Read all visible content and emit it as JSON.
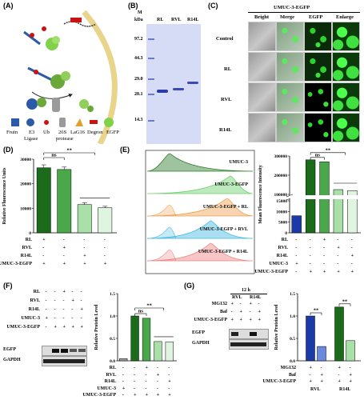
{
  "panels": {
    "A": {
      "label": "(A)",
      "legend": [
        "Fruin",
        "E3",
        "Ub",
        "26S",
        "LaG16",
        "Degron",
        "EGFP"
      ],
      "legend_line2": [
        "Ligase",
        "protease"
      ]
    },
    "B": {
      "label": "(B)",
      "marker_header": "M",
      "kda_label": "kDa",
      "lane_labels": [
        "RL",
        "RVL",
        "R14L"
      ],
      "kda_values": [
        "97.2",
        "44.3",
        "29.0",
        "20.1",
        "14.3"
      ]
    },
    "C": {
      "label": "(C)",
      "title": "UMUC-3-EGFP",
      "col_headers": [
        "Bright",
        "Merge",
        "EGFP",
        "Enlarge"
      ],
      "row_labels": [
        "Control",
        "RL",
        "RVL",
        "R14L"
      ]
    },
    "D": {
      "label": "(D)",
      "ylabel": "Relative Fluorescence Units",
      "sig_ns": "ns",
      "sig_star": "**",
      "row_labels": [
        "RL",
        "RVL",
        "R14L",
        "UMUC-3-EGFP"
      ],
      "row_signs": [
        [
          "+",
          "-",
          "-",
          "-"
        ],
        [
          "-",
          "+",
          "-",
          "-"
        ],
        [
          "-",
          "-",
          "+",
          "-"
        ],
        [
          "+",
          "+",
          "+",
          "+"
        ]
      ]
    },
    "E": {
      "label": "(E)",
      "flow_labels": [
        "UMUC-3",
        "UMUC-3-EGFP",
        "UMUC-3-EGFP + RL",
        "UMUC-3-EGFP + RVL",
        "UMUC-3-EGFP + R14L"
      ],
      "ylabel": "Mean Fluorescence Intensity",
      "sig_ns": "ns",
      "sig_star": "**",
      "row_labels": [
        "RL",
        "RVL",
        "R14L",
        "UMUC-3",
        "UMUC-3-EGFP"
      ],
      "row_signs": [
        [
          "-",
          "-",
          "+",
          "-",
          "-"
        ],
        [
          "-",
          "-",
          "-",
          "+",
          "-"
        ],
        [
          "-",
          "-",
          "-",
          "-",
          "+"
        ],
        [
          "+",
          "-",
          "-",
          "-",
          "-"
        ],
        [
          "-",
          "+",
          "+",
          "+",
          "+"
        ]
      ]
    },
    "F": {
      "label": "(F)",
      "blot_rows": [
        "RL",
        "RVL",
        "R14L",
        "UMUC-3",
        "UMUC-3-EGFP"
      ],
      "blot_signs": [
        [
          "-",
          "-",
          "+",
          "-",
          "-"
        ],
        [
          "-",
          "-",
          "-",
          "+",
          "-"
        ],
        [
          "-",
          "-",
          "-",
          "-",
          "+"
        ],
        [
          "+",
          "-",
          "-",
          "-",
          "-"
        ],
        [
          "-",
          "+",
          "+",
          "+",
          "+"
        ]
      ],
      "bands": [
        "EGFP",
        "GAPDH"
      ],
      "ylabel": "Relative Protein Level",
      "sig_ns": "ns",
      "sig_star": "**"
    },
    "G": {
      "label": "(G)",
      "time_label": "12 h",
      "groups": [
        "RVL",
        "R14L"
      ],
      "blot_rows": [
        "MG132",
        "Baf",
        "UMUC-3-EGFP"
      ],
      "blot_signs": [
        [
          "+",
          "-",
          "+",
          "-"
        ],
        [
          "-",
          "+",
          "-",
          "+"
        ],
        [
          "+",
          "+",
          "+",
          "+"
        ]
      ],
      "bands": [
        "EGFP",
        "GAPDH"
      ],
      "ylabel": "Relative Protein Level",
      "sig_star_1": "**",
      "sig_star_2": "**"
    }
  },
  "chart_data": [
    {
      "type": "bar",
      "panel": "D",
      "categories": [
        "RL",
        "RVL",
        "R14L",
        "UMUC-3-EGFP"
      ],
      "values": [
        26500,
        25800,
        11500,
        10200
      ],
      "errors": [
        1200,
        1000,
        800,
        600
      ],
      "ylabel": "Relative Fluorescence Units",
      "ylim": [
        0,
        30000
      ],
      "yticks": [
        "0",
        "10000",
        "20000",
        "30000"
      ],
      "colors": [
        "#1a6b1a",
        "#4aa84a",
        "#a8e0a8",
        "#e0f5e0"
      ]
    },
    {
      "type": "bar",
      "panel": "E",
      "categories": [
        "UMUC-3",
        "UMUC-3-EGFP",
        "RL",
        "RVL",
        "R14L"
      ],
      "values": [
        8000,
        280000,
        270000,
        125000,
        120000
      ],
      "ylabel": "Mean Fluorescence Intensity",
      "yticks": [
        "0",
        "5000",
        "10000",
        "15000",
        "100000",
        "200000",
        "300000"
      ],
      "colors": [
        "#1a3aa8",
        "#1a6b1a",
        "#4aa84a",
        "#a8e0a8",
        "#e0f5e0"
      ]
    },
    {
      "type": "bar",
      "panel": "F",
      "categories": [
        "UMUC-3",
        "UMUC-3-EGFP",
        "RL",
        "RVL",
        "R14L"
      ],
      "values": [
        0.05,
        1.0,
        0.95,
        0.43,
        0.42
      ],
      "ylabel": "Relative Protein Level",
      "ylim": [
        0,
        1.5
      ],
      "yticks": [
        "0.0",
        "0.5",
        "1.0",
        "1.5"
      ],
      "colors": [
        "#a0a0a0",
        "#1a6b1a",
        "#4aa84a",
        "#a8e0a8",
        "#e0f5e0"
      ]
    },
    {
      "type": "bar",
      "panel": "G",
      "categories": [
        "RVL MG132",
        "RVL Baf",
        "R14L MG132",
        "R14L Baf"
      ],
      "values": [
        1.0,
        0.32,
        1.2,
        0.45
      ],
      "ylabel": "Relative Protein Level",
      "ylim": [
        0,
        1.5
      ],
      "yticks": [
        "0.0",
        "0.5",
        "1.0",
        "1.5"
      ],
      "groups": [
        "RVL",
        "R14L"
      ],
      "colors": [
        "#1a3aa8",
        "#6a8ae0",
        "#1a6b1a",
        "#a8e0a8"
      ]
    }
  ]
}
